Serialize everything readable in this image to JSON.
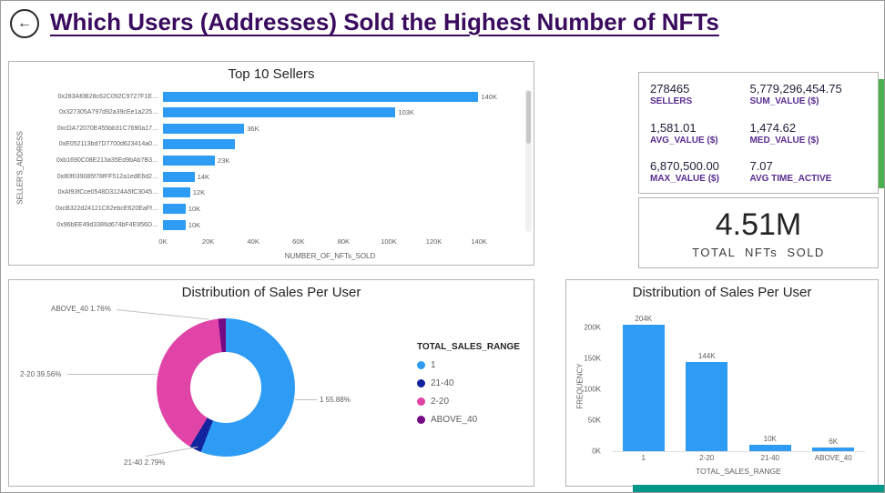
{
  "header": {
    "title": "Which Users (Addresses) Sold the Highest Number of NFTs"
  },
  "icons": {
    "back": "←"
  },
  "colors": {
    "bar_blue": "#2E9BF5",
    "navy": "#12239E",
    "magenta": "#E044A7",
    "dark_purple": "#750985",
    "title_purple": "#3A0B5E",
    "stat_label_purple": "#5A2D91",
    "text_gray": "#605E5C",
    "strip_green": "#4CAF50",
    "strip_teal": "#009688"
  },
  "stats_card": {
    "cells": [
      {
        "value": "278465",
        "label": "SELLERS"
      },
      {
        "value": "5,779,296,454.75",
        "label": "SUM_VALUE ($)"
      },
      {
        "value": "1,581.01",
        "label": "AVG_VALUE ($)"
      },
      {
        "value": "1,474.62",
        "label": "MED_VALUE ($)"
      },
      {
        "value": "6,870,500.00",
        "label": "MAX_VALUE ($)"
      },
      {
        "value": "7.07",
        "label": "AVG TIME_ACTIVE"
      }
    ]
  },
  "total_card": {
    "value": "4.51M",
    "label": "TOTAL NFTs SOLD"
  },
  "chart_data": [
    {
      "type": "bar",
      "orientation": "horizontal",
      "title": "Top 10 Sellers",
      "xlabel": "NUMBER_OF_NFTs_SOLD",
      "ylabel": "SELLER'S_ADDRESS",
      "categories": [
        "0x283Af0B28c62C092C9727F1E…",
        "0x327305A797d92a39cEe1a225…",
        "0xcDA72070E455bb31C7690a17…",
        "0xE052113bd7D7700d623414a0…",
        "0xb1690C08E213a35Ed9bAb7B3…",
        "0x80f039085f78fFF512a1edE6d2…",
        "0xAf93fCce0548D3124A5fC3045…",
        "0xcB322d24121C62ebcE620EaFf…",
        "0x96bEE49d3386d674bF4E956D…"
      ],
      "values": [
        140000,
        103000,
        36000,
        32000,
        23000,
        14000,
        12000,
        10000,
        10000
      ],
      "data_labels": [
        "140K",
        "103K",
        "36K",
        "",
        "23K",
        "14K",
        "12K",
        "10K",
        "10K"
      ],
      "xlim": [
        0,
        148000
      ],
      "x_ticks": [
        "0K",
        "20K",
        "40K",
        "60K",
        "80K",
        "100K",
        "120K",
        "140K"
      ],
      "x_tick_values": [
        0,
        20000,
        40000,
        60000,
        80000,
        100000,
        120000,
        140000
      ],
      "legend_position": "none",
      "grid": false
    },
    {
      "type": "pie",
      "subtype": "donut",
      "title": "Distribution of Sales Per User",
      "legend_title": "TOTAL_SALES_RANGE",
      "slices": [
        {
          "label": "1",
          "pct": 55.88,
          "color": "#2E9BF5"
        },
        {
          "label": "21-40",
          "pct": 2.79,
          "color": "#12239E"
        },
        {
          "label": "2-20",
          "pct": 39.56,
          "color": "#E044A7"
        },
        {
          "label": "ABOVE_40",
          "pct": 1.76,
          "color": "#750985"
        }
      ],
      "callouts": [
        "ABOVE_40 1.76%",
        "2-20 39.56%",
        "1 55.88%",
        "21-40 2.79%"
      ],
      "legend_position": "right"
    },
    {
      "type": "bar",
      "orientation": "vertical",
      "title": "Distribution of Sales Per User",
      "xlabel": "TOTAL_SALES_RANGE",
      "ylabel": "FREQUENCY",
      "categories": [
        "1",
        "2-20",
        "21-40",
        "ABOVE_40"
      ],
      "values": [
        204000,
        144000,
        10000,
        6000
      ],
      "data_labels": [
        "204K",
        "144K",
        "10K",
        "6K"
      ],
      "ylim": [
        0,
        220000
      ],
      "y_ticks": [
        "0K",
        "50K",
        "100K",
        "150K",
        "200K"
      ],
      "y_tick_values": [
        0,
        50000,
        100000,
        150000,
        200000
      ],
      "legend_position": "none",
      "grid": false
    }
  ]
}
